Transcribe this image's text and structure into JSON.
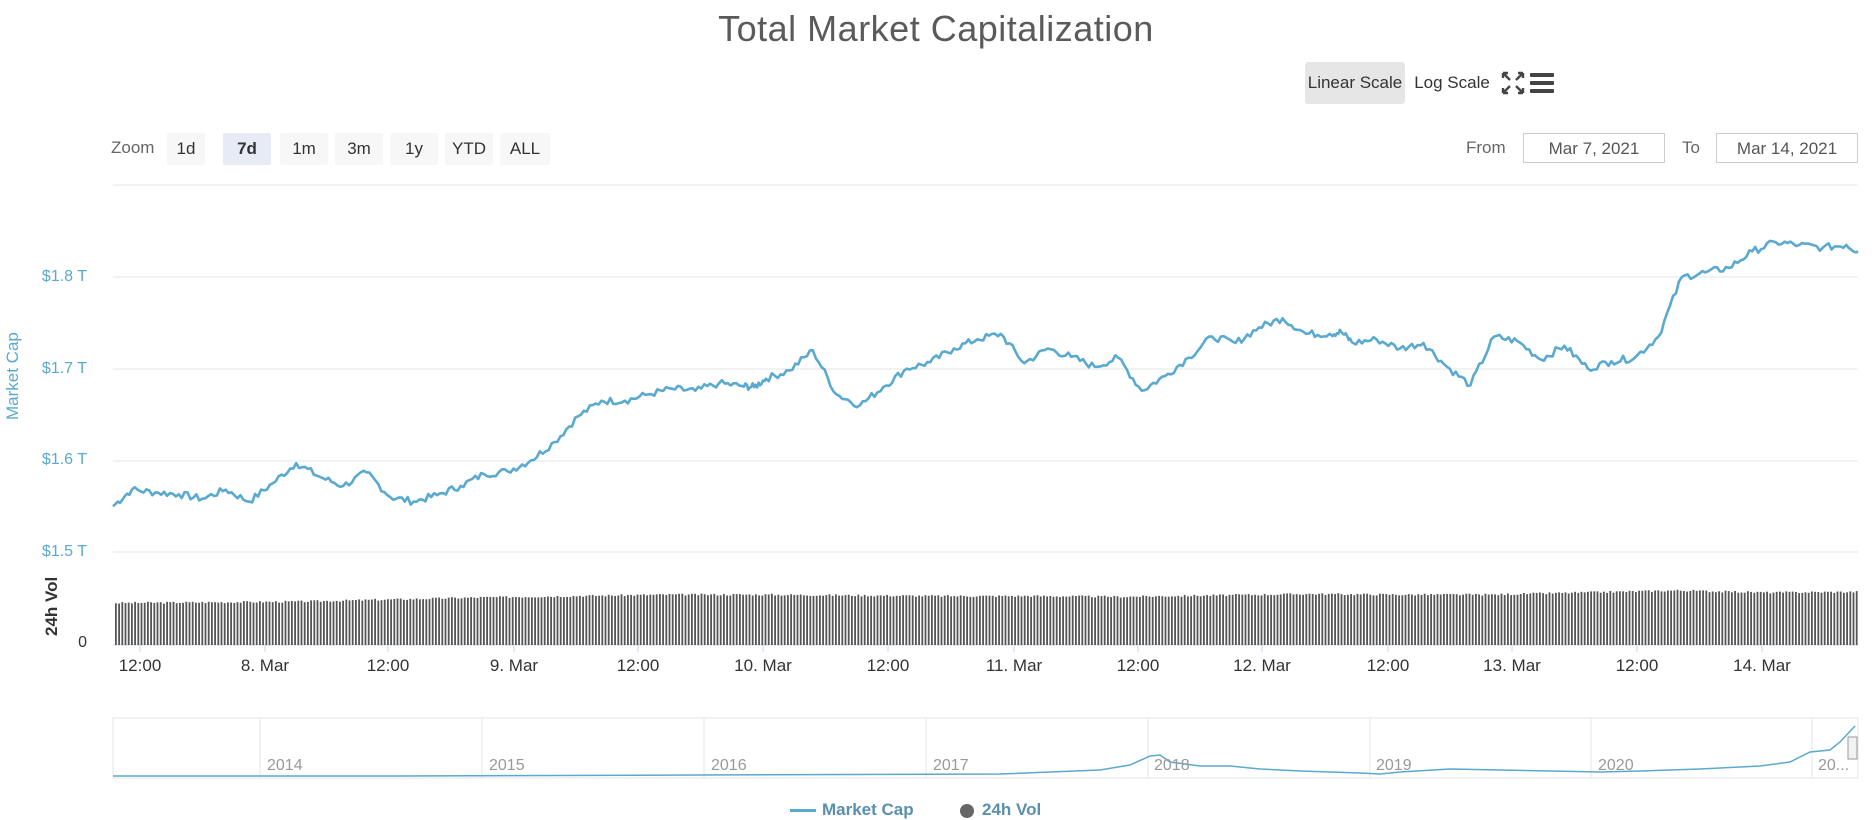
{
  "title": "Total Market Capitalization",
  "toolbar": {
    "linear_label": "Linear Scale",
    "log_label": "Log Scale",
    "active_scale": "linear",
    "fullscreen_icon": "fullscreen-icon",
    "menu_icon": "hamburger-menu-icon"
  },
  "zoom": {
    "label": "Zoom",
    "buttons": [
      "1d",
      "7d",
      "1m",
      "3m",
      "1y",
      "YTD",
      "ALL"
    ],
    "active": "7d"
  },
  "range": {
    "from_label": "From",
    "from_value": "Mar 7, 2021",
    "to_label": "To",
    "to_value": "Mar 14, 2021"
  },
  "legend": {
    "market_cap": "Market Cap",
    "volume": "24h Vol"
  },
  "navigator": {
    "labels": [
      "2014",
      "2015",
      "2016",
      "2017",
      "2018",
      "2019",
      "2020",
      "20..."
    ]
  },
  "colors": {
    "line": "#5aa9cf",
    "volume": "#555555",
    "grid": "#e6e6e6",
    "axis_label": "#5aa9cf"
  },
  "chart_data": {
    "type": "line",
    "title": "Total Market Capitalization",
    "ylabel": "Market Cap",
    "ylabel2": "24h Vol",
    "y_ticks": [
      "$1.5 T",
      "$1.6 T",
      "$1.7 T",
      "$1.8 T"
    ],
    "y_tick_values": [
      1.5,
      1.6,
      1.7,
      1.8
    ],
    "y2_ticks": [
      "0"
    ],
    "ylim": [
      1.5,
      1.85
    ],
    "x_ticks": [
      "12:00",
      "8. Mar",
      "12:00",
      "9. Mar",
      "12:00",
      "10. Mar",
      "12:00",
      "11. Mar",
      "12:00",
      "12. Mar",
      "12:00",
      "13. Mar",
      "12:00",
      "14. Mar"
    ],
    "x_range_days": [
      7.42,
      14.85
    ],
    "series": [
      {
        "name": "Market Cap",
        "unit": "trillion USD",
        "x_day": [
          7.42,
          7.5,
          7.6,
          7.7,
          7.8,
          7.9,
          8.0,
          8.1,
          8.2,
          8.3,
          8.4,
          8.5,
          8.6,
          8.7,
          8.8,
          8.9,
          9.0,
          9.1,
          9.2,
          9.3,
          9.4,
          9.5,
          9.6,
          9.7,
          9.8,
          9.9,
          10.0,
          10.1,
          10.15,
          10.2,
          10.3,
          10.4,
          10.5,
          10.6,
          10.7,
          10.8,
          10.9,
          11.0,
          11.1,
          11.2,
          11.3,
          11.4,
          11.5,
          11.6,
          11.7,
          11.8,
          11.9,
          12.0,
          12.1,
          12.2,
          12.3,
          12.4,
          12.5,
          12.6,
          12.65,
          12.7,
          12.8,
          12.9,
          13.0,
          13.1,
          13.2,
          13.3,
          13.4,
          13.5,
          13.6,
          13.7,
          13.8,
          13.9,
          14.0,
          14.1,
          14.2,
          14.3,
          14.4,
          14.5,
          14.6,
          14.7,
          14.8,
          14.85
        ],
        "values": [
          1.55,
          1.568,
          1.565,
          1.563,
          1.558,
          1.568,
          1.555,
          1.575,
          1.597,
          1.582,
          1.572,
          1.587,
          1.56,
          1.555,
          1.562,
          1.572,
          1.585,
          1.588,
          1.6,
          1.62,
          1.648,
          1.665,
          1.665,
          1.672,
          1.678,
          1.676,
          1.684,
          1.681,
          1.68,
          1.689,
          1.698,
          1.72,
          1.672,
          1.66,
          1.68,
          1.7,
          1.707,
          1.722,
          1.732,
          1.738,
          1.706,
          1.722,
          1.713,
          1.702,
          1.712,
          1.676,
          1.692,
          1.712,
          1.735,
          1.728,
          1.745,
          1.755,
          1.738,
          1.738,
          1.74,
          1.728,
          1.732,
          1.722,
          1.728,
          1.702,
          1.682,
          1.735,
          1.73,
          1.71,
          1.725,
          1.7,
          1.708,
          1.712,
          1.735,
          1.8,
          1.805,
          1.81,
          1.828,
          1.838,
          1.835,
          1.832,
          1.835,
          1.828
        ]
      },
      {
        "name": "24h Vol",
        "unit": "relative",
        "values_rel": [
          0.6,
          0.61,
          0.62,
          0.65,
          0.68,
          0.7,
          0.72,
          0.72,
          0.71,
          0.7,
          0.7,
          0.69,
          0.71,
          0.73,
          0.72,
          0.72,
          0.75,
          0.78,
          0.75,
          0.76
        ]
      }
    ],
    "grid": true,
    "legend_position": "bottom-center"
  }
}
